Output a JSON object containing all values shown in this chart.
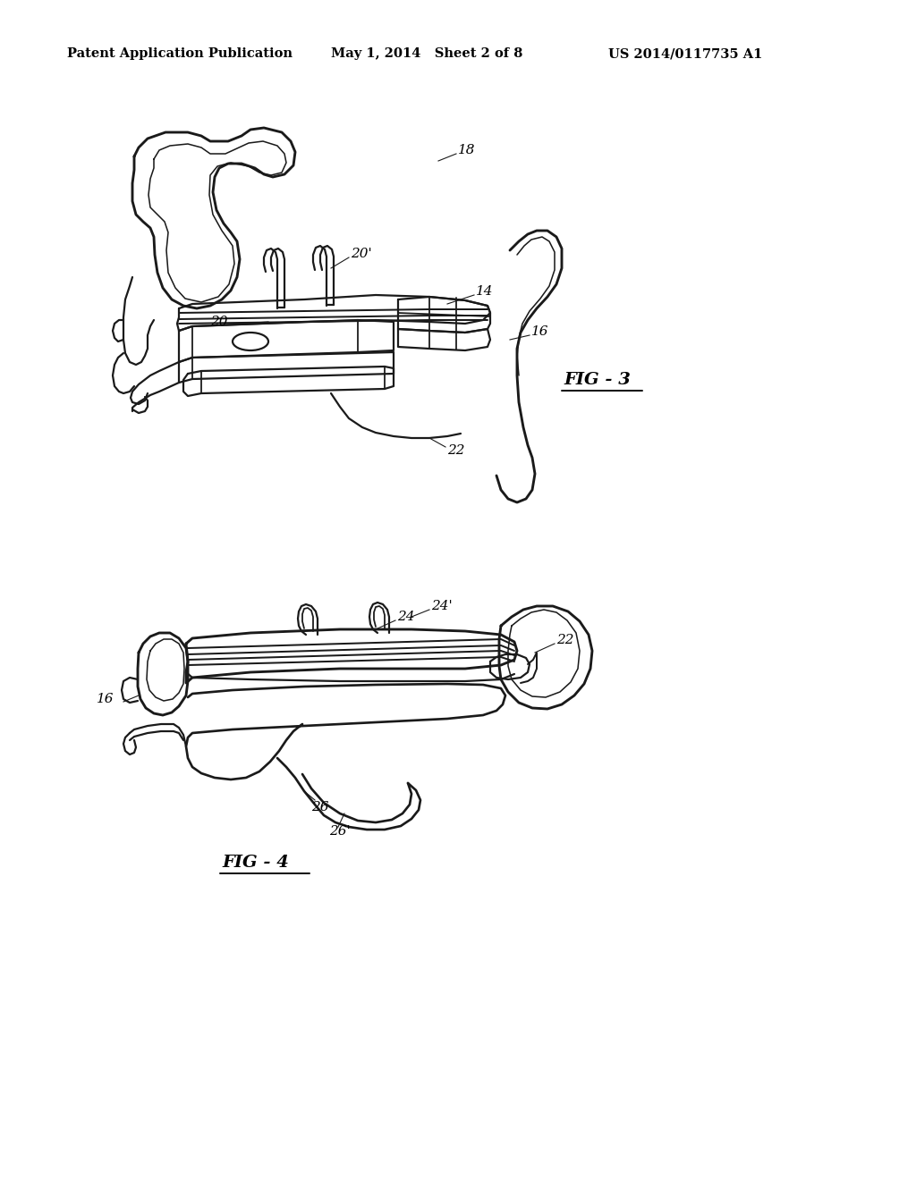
{
  "background_color": "#ffffff",
  "header_left": "Patent Application Publication",
  "header_center": "May 1, 2014   Sheet 2 of 8",
  "header_right": "US 2014/0117735 A1",
  "header_fontsize": 10.5,
  "fig3_label": "FIG - 3",
  "fig4_label": "FIG - 4",
  "line_color": "#1a1a1a",
  "line_width": 1.6,
  "label_fontsize": 11,
  "fig_label_fontsize": 14
}
